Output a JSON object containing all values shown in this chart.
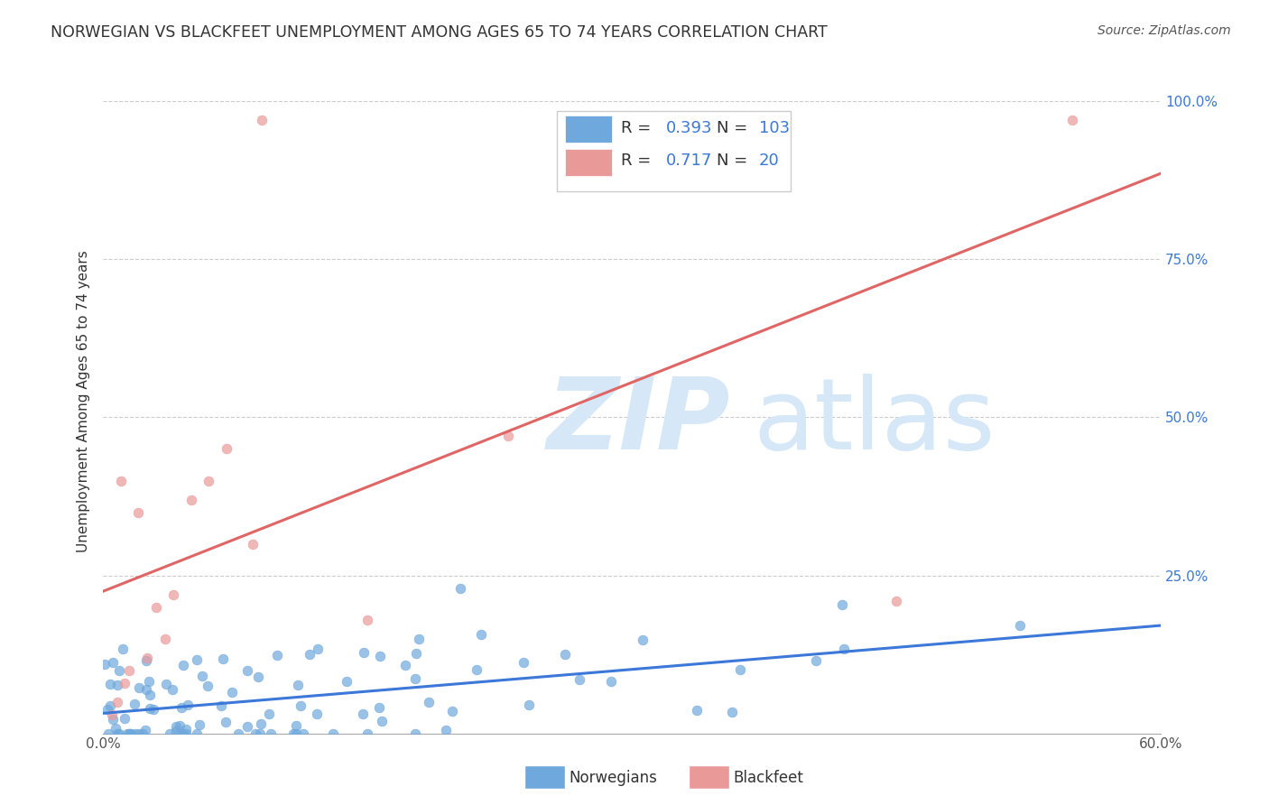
{
  "title": "NORWEGIAN VS BLACKFEET UNEMPLOYMENT AMONG AGES 65 TO 74 YEARS CORRELATION CHART",
  "source": "Source: ZipAtlas.com",
  "ylabel": "Unemployment Among Ages 65 to 74 years",
  "xlim": [
    0.0,
    0.6
  ],
  "ylim": [
    0.0,
    1.05
  ],
  "norwegian_color": "#6fa8dc",
  "blackfeet_color": "#ea9999",
  "norwegian_line_color": "#3c78d8",
  "blackfeet_line_color": "#e06666",
  "watermark_color": "#d6e8f7",
  "legend_value_color": "#3c78d8",
  "legend_r_norwegian": "0.393",
  "legend_n_norwegian": "103",
  "legend_r_blackfeet": "0.717",
  "legend_n_blackfeet": "20"
}
